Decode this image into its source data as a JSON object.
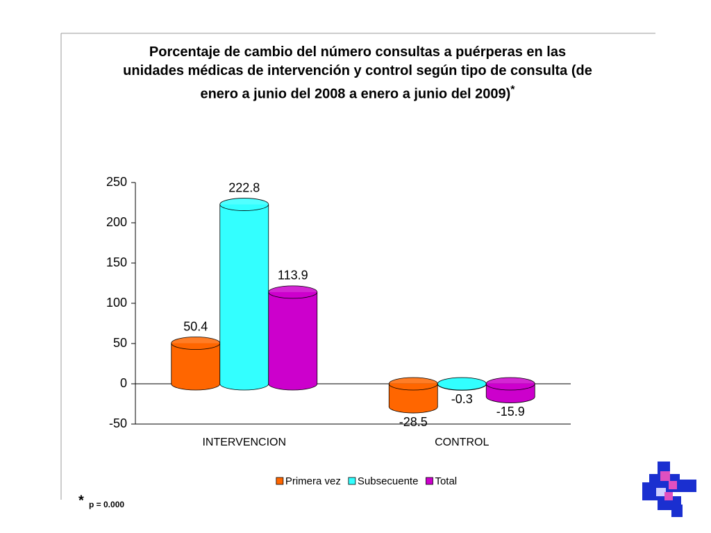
{
  "chart_data": {
    "type": "bar",
    "title": "Porcentaje de cambio del número consultas a puérperas en las unidades médicas de intervención y control según tipo de consulta (de enero a  junio del 2008 a enero a junio del 2009)",
    "title_note": "*",
    "categories": [
      "INTERVENCION",
      "CONTROL"
    ],
    "series": [
      {
        "name": "Primera vez",
        "color": "#ff6600",
        "values": [
          50.4,
          -28.5
        ]
      },
      {
        "name": "Subsecuente",
        "color": "#33ffff",
        "values": [
          222.8,
          -0.3
        ]
      },
      {
        "name": "Total",
        "color": "#cc00cc",
        "values": [
          113.9,
          -15.9
        ]
      }
    ],
    "ylim": [
      -50,
      250
    ],
    "yticks": [
      -50,
      0,
      50,
      100,
      150,
      200,
      250
    ],
    "legend": "bottom",
    "footnote": {
      "marker": "*",
      "text": "p = 0.000"
    }
  }
}
